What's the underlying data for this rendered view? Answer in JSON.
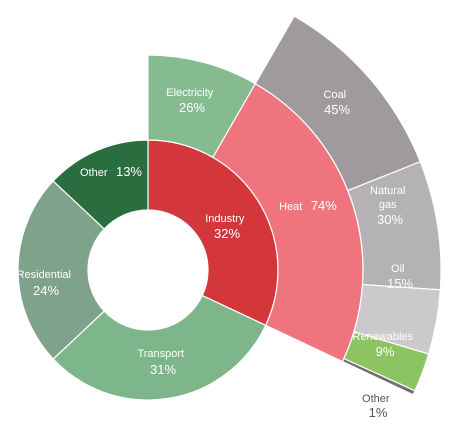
{
  "chart_data": {
    "type": "sunburst",
    "title": "",
    "inner_ring": [
      {
        "name": "Industry",
        "value": 32,
        "label": "32%",
        "color": "#d3363b"
      },
      {
        "name": "Transport",
        "value": 31,
        "label": "31%",
        "color": "#7db68a"
      },
      {
        "name": "Residential",
        "value": 24,
        "label": "24%",
        "color": "#7fa28a"
      },
      {
        "name": "Other",
        "value": 13,
        "label": "13%",
        "color": "#2a6e3f"
      }
    ],
    "industry_breakdown": [
      {
        "name": "Electricity",
        "value": 26,
        "label": "26%",
        "color": "#86ba8f"
      },
      {
        "name": "Heat",
        "value": 74,
        "label": "74%",
        "color": "#ef747d"
      }
    ],
    "heat_breakdown": [
      {
        "name": "Coal",
        "value": 45,
        "label": "45%",
        "color": "#9e9a9e"
      },
      {
        "name": "Natural gas",
        "value": 30,
        "label": "30%",
        "color": "#b5b2b5"
      },
      {
        "name": "Oil",
        "value": 15,
        "label": "15%",
        "color": "#cbc9cb"
      },
      {
        "name": "Renewables",
        "value": 9,
        "label": "9%",
        "color": "#8cc462"
      },
      {
        "name": "Other",
        "value": 1,
        "label": "1%",
        "color": "#6f6f6f"
      }
    ]
  }
}
